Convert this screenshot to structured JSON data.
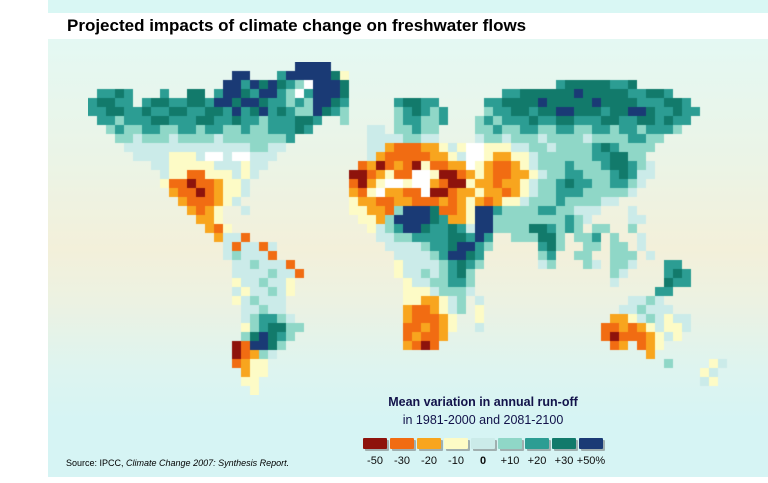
{
  "title": "Projected impacts of climate change on freshwater flows",
  "legend": {
    "title": "Mean variation in annual run-off",
    "subtitle": "in 1981-2000 and 2081-2100",
    "classes": [
      {
        "label": "-50",
        "color": "#8e130c",
        "bold": false
      },
      {
        "label": "-30",
        "color": "#f16c12",
        "bold": false
      },
      {
        "label": "-20",
        "color": "#f8a51e",
        "bold": false
      },
      {
        "label": "-10",
        "color": "#fdfbc6",
        "bold": false
      },
      {
        "label": "0",
        "color": "#cbebe9",
        "bold": true
      },
      {
        "label": "+10",
        "color": "#8fd7c7",
        "bold": false
      },
      {
        "label": "+20",
        "color": "#2c9d93",
        "bold": false
      },
      {
        "label": "+30",
        "color": "#127a6b",
        "bold": false
      },
      {
        "label": "+50%",
        "color": "#1a3a75",
        "bold": false
      }
    ]
  },
  "source": {
    "prefix": "Source: IPCC, ",
    "work": "Climate Change 2007: Synthesis Report."
  },
  "colors": {
    "top_strip": "#d9f7f4",
    "footer_cyan": "#d6f4f4",
    "ocean_top": "#e4f8f3",
    "ocean_mid_cream": "#f3f0da",
    "title_text": "#000000",
    "legend_text": "#12124a"
  },
  "map": {
    "cell_size": 9,
    "legend_keys": [
      "a",
      "b",
      "c",
      "d",
      "e",
      "f",
      "g",
      "h",
      "i"
    ],
    "palette": {
      "a": "#8e130c",
      "b": "#f16c12",
      "c": "#f8a51e",
      "d": "#fdfbc6",
      "e": "#cbebe9",
      "f": "#8fd7c7",
      "g": "#2c9d93",
      "h": "#127a6b",
      "i": "#1a3a75",
      "w": "#ffffff"
    },
    "grid": [
      ".......................iiii.............................................",
      "................ii...giiiiihd...........................................",
      "...............iigihihgfwiiih.......................ghhhhhggh...........",
      ".gghg...g..hh.giihgiigfwgiiih.................gghhhhhhihhhhhgghhg.......",
      "ghhgg.ghhgghhgiihiihggfgfiihg.....ghhgg.....gghhhhihhhhhihhhhggghhg.....",
      "gghhgghgghhgghhgighighgffihgf.....fghgfg....fgghhghhiihhhghhiihgghgg....",
      ".ggfggghhggghhgghggfggghhg..f.....fggffg...fgfggghgghhggghhgghhghgg.....",
      "..fgffggffggfggffgffggghg......ee.ffgff....ffgffggffggffggfggfgggf......",
      "...ffefffeffffefffffffg........eeeeffee....effefffeffffeffffggff........",
      "....eeeeeeeeeeeeeeffee.........eecbbbccdedwwdddeeffeffffghgffff.........",
      ".....eeeedddewwewweee..........ecbbbbbccdewwdccddeffffffgghhff..........",
      ".......eedddddeeedee..........bcabcbadbbccwdcbbcdefffgfffghhgfe.........",
      "........eddbbdddede..........aabcdbbwwdaabcdcbbccdeffggfffghgee.........",
      "........dbbabbcdde...........bacdwwdwwcbaadccbccdeffghggffggfe..........",
      ".........cbbabcdde...........cbdwccbbwaabccdccbcdeffgggfffffe...........",
      "..........cbbbcde............dccbbccbbbcbcdcbcddefffgffffee.............",
      "...........cbcd..e...........ddccbfiiihbbcdiigffffggffeee...e...........",
      "............ccd...............ddcfiiiihgccdiiffffffffgfe....ee..........",
      ".............cbd...............defgiihgghgeiiffffhhgfgf.ff..f...........",
      "..............ceeb..............eeffgggghhgig..fffhhf.ffg.f..e..........",
      "...............ebeebe............eeeefgghiigf.....ghf..ff.ff.e..........",
      "...............efeeeb.............eeeefgiihg......fg..ff..fff.e.........",
      "................eefeeeb...........deeeefghgf......ef...fe.ffe...gg......",
      "................eeeefeeb..........deefefghf...............fe....ghg.....",
      "................deefeed............deeffggf...............e.....hgg.....",
      "................edeefed............dddefffe....................gg.......",
      "................defeee.............ddccdef.e................eefe........",
      ".................eefee.............cbbcdef.d...............eefeee.......",
      ".................efggfe............cbbbcd..d..............ccdefedee.....",
      ".................dfghhff...........bbcbcd..e.............bbcbcdedde.....",
      ".................fhihgf............bcbbc.................babbbcded......",
      "................abiihf.............cbab...................bc.bcd........",
      "................abcfe.........................................c.........",
      "................bcdd............................................f....de.",
      ".................cdd................................................de..",
      ".................dd.................................................ed..",
      "..................d....................................................."
    ]
  }
}
